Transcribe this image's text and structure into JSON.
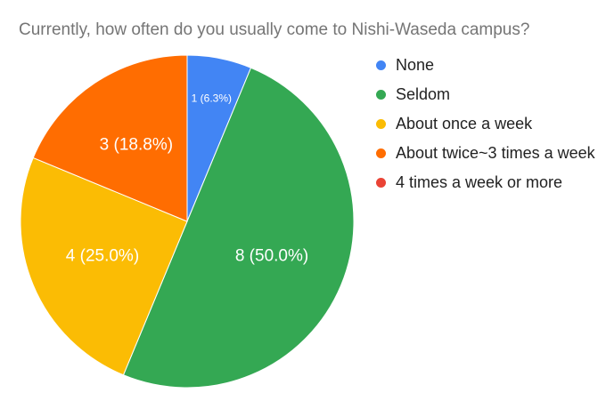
{
  "chart_data": {
    "type": "pie",
    "title": "Currently, how often do you usually come to Nishi-Waseda campus?",
    "categories": [
      "None",
      "Seldom",
      "About once a week",
      "About twice~3 times a week",
      "4 times a week or more"
    ],
    "values": [
      1,
      8,
      4,
      3,
      0
    ],
    "data_labels": [
      "1 (6.3%)",
      "8 (50.0%)",
      "4 (25.0%)",
      "3 (18.8%)",
      ""
    ],
    "colors": [
      "#4285F4",
      "#34A853",
      "#FBBC04",
      "#FF6D01",
      "#EA4335"
    ],
    "legend_position": "right"
  }
}
